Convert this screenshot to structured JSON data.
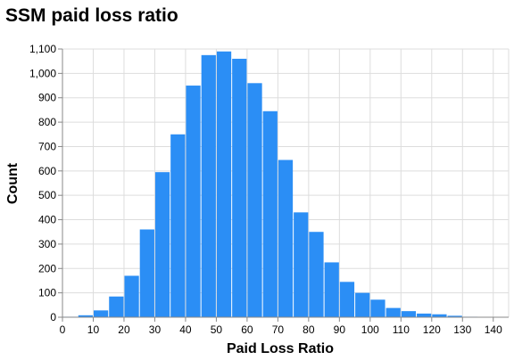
{
  "chart_data": {
    "type": "bar",
    "title": "SSM paid loss ratio",
    "xlabel": "Paid Loss Ratio",
    "ylabel": "Count",
    "bar_color": "#2b8ef5",
    "grid": true,
    "bin_width": 5,
    "xlim": [
      0,
      145
    ],
    "ylim": [
      0,
      1100
    ],
    "x_ticks": [
      "0",
      "10",
      "20",
      "30",
      "40",
      "50",
      "60",
      "70",
      "80",
      "90",
      "100",
      "110",
      "120",
      "130",
      "140"
    ],
    "y_ticks": [
      "0",
      "100",
      "200",
      "300",
      "400",
      "500",
      "600",
      "700",
      "800",
      "900",
      "1,000",
      "1,100"
    ],
    "bins": [
      {
        "x0": 0,
        "x1": 5,
        "count": 2
      },
      {
        "x0": 5,
        "x1": 10,
        "count": 8
      },
      {
        "x0": 10,
        "x1": 15,
        "count": 28
      },
      {
        "x0": 15,
        "x1": 20,
        "count": 85
      },
      {
        "x0": 20,
        "x1": 25,
        "count": 170
      },
      {
        "x0": 25,
        "x1": 30,
        "count": 360
      },
      {
        "x0": 30,
        "x1": 35,
        "count": 595
      },
      {
        "x0": 35,
        "x1": 40,
        "count": 750
      },
      {
        "x0": 40,
        "x1": 45,
        "count": 950
      },
      {
        "x0": 45,
        "x1": 50,
        "count": 1075
      },
      {
        "x0": 50,
        "x1": 55,
        "count": 1090
      },
      {
        "x0": 55,
        "x1": 60,
        "count": 1060
      },
      {
        "x0": 60,
        "x1": 65,
        "count": 960
      },
      {
        "x0": 65,
        "x1": 70,
        "count": 845
      },
      {
        "x0": 70,
        "x1": 75,
        "count": 645
      },
      {
        "x0": 75,
        "x1": 80,
        "count": 430
      },
      {
        "x0": 80,
        "x1": 85,
        "count": 350
      },
      {
        "x0": 85,
        "x1": 90,
        "count": 225
      },
      {
        "x0": 90,
        "x1": 95,
        "count": 145
      },
      {
        "x0": 95,
        "x1": 100,
        "count": 100
      },
      {
        "x0": 100,
        "x1": 105,
        "count": 72
      },
      {
        "x0": 105,
        "x1": 110,
        "count": 38
      },
      {
        "x0": 110,
        "x1": 115,
        "count": 25
      },
      {
        "x0": 115,
        "x1": 120,
        "count": 15
      },
      {
        "x0": 120,
        "x1": 125,
        "count": 12
      },
      {
        "x0": 125,
        "x1": 130,
        "count": 6
      },
      {
        "x0": 130,
        "x1": 135,
        "count": 2
      },
      {
        "x0": 135,
        "x1": 140,
        "count": 1
      },
      {
        "x0": 140,
        "x1": 145,
        "count": 1
      }
    ]
  }
}
